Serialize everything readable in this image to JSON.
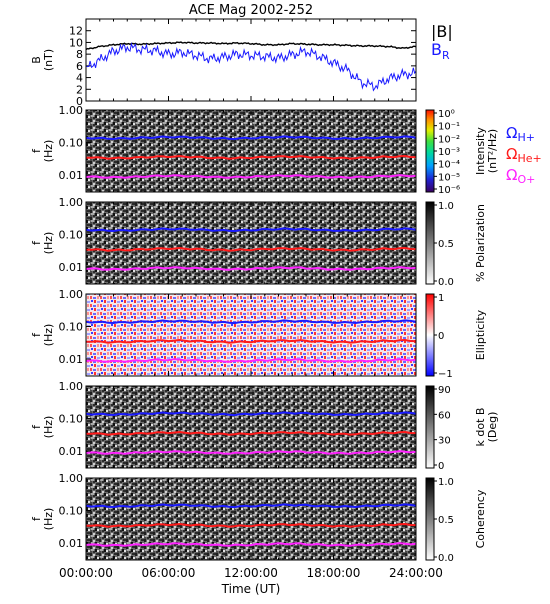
{
  "chart_data": {
    "title": "ACE Mag 2002-252",
    "xlabel": "Time (UT)",
    "x_ticks": [
      "00:00:00",
      "06:00:00",
      "12:00:00",
      "18:00:00",
      "24:00:00"
    ],
    "xlim": [
      0,
      24
    ],
    "panels": [
      {
        "type": "line",
        "ylabel": [
          "B",
          "(nT)"
        ],
        "ylim": [
          0,
          14
        ],
        "y_ticks": [
          "0",
          "2",
          "4",
          "6",
          "8",
          "10",
          "12"
        ],
        "legend": [
          {
            "label": "|B|",
            "color": "#000000"
          },
          {
            "label": "B",
            "sub": "R",
            "color": "#1a1aff"
          }
        ],
        "series": [
          {
            "name": "|B|",
            "color": "#000000",
            "x": [
              0,
              1,
              2,
              3,
              4,
              5,
              6,
              7,
              8,
              9,
              10,
              11,
              12,
              13,
              14,
              15,
              16,
              17,
              18,
              19,
              20,
              21,
              22,
              23,
              24
            ],
            "y": [
              8.8,
              9.3,
              9.6,
              9.8,
              9.7,
              9.8,
              9.9,
              10.0,
              9.9,
              9.9,
              9.8,
              9.9,
              9.8,
              9.6,
              9.6,
              9.8,
              9.7,
              9.6,
              9.6,
              9.5,
              9.4,
              9.4,
              9.3,
              9.0,
              9.3
            ]
          },
          {
            "name": "B_R",
            "color": "#1a1aff",
            "x": [
              0,
              1,
              2,
              3,
              4,
              5,
              6,
              7,
              8,
              9,
              10,
              11,
              12,
              13,
              14,
              15,
              16,
              17,
              18,
              19,
              20,
              21,
              22,
              23,
              24
            ],
            "y": [
              5.5,
              7.0,
              8.5,
              9.2,
              8.8,
              8.6,
              8.0,
              8.3,
              7.8,
              7.2,
              7.5,
              8.0,
              7.8,
              7.6,
              7.3,
              7.9,
              8.5,
              7.6,
              6.5,
              5.3,
              3.2,
              2.5,
              3.8,
              4.5,
              4.8
            ]
          }
        ]
      },
      {
        "type": "heatmap",
        "ylabel": [
          "f",
          "(Hz)"
        ],
        "ylim": [
          0.003,
          1.0
        ],
        "yscale": "log",
        "y_ticks": [
          "1.00",
          "0.10",
          "0.01"
        ],
        "colorbar": {
          "label": [
            "Intensity",
            "(nT²/Hz)"
          ],
          "ticks": [
            "10⁰",
            "10⁻¹",
            "10⁻²",
            "10⁻³",
            "10⁻⁴",
            "10⁻⁵",
            "10⁻⁶"
          ],
          "scale": "rainbow"
        },
        "lines": [
          {
            "label": "Ω",
            "sub": "H+",
            "color": "#1a1aff",
            "value": 0.14
          },
          {
            "label": "Ω",
            "sub": "He+",
            "color": "#ff1a1a",
            "value": 0.035
          },
          {
            "label": "Ω",
            "sub": "O+",
            "color": "#ff22ff",
            "value": 0.009
          }
        ]
      },
      {
        "type": "heatmap",
        "ylabel": [
          "f",
          "(Hz)"
        ],
        "ylim": [
          0.003,
          1.0
        ],
        "yscale": "log",
        "y_ticks": [
          "1.00",
          "0.10",
          "0.01"
        ],
        "colorbar": {
          "label": [
            "% Polarization"
          ],
          "ticks": [
            "1.0",
            "0.5",
            "0.0"
          ],
          "scale": "gray"
        }
      },
      {
        "type": "heatmap",
        "ylabel": [
          "f",
          "(Hz)"
        ],
        "ylim": [
          0.003,
          1.0
        ],
        "yscale": "log",
        "y_ticks": [
          "1.00",
          "0.10",
          "0.01"
        ],
        "colorbar": {
          "label": [
            "Ellipticity"
          ],
          "ticks": [
            "1",
            "0",
            "−1"
          ],
          "scale": "bwr"
        }
      },
      {
        "type": "heatmap",
        "ylabel": [
          "f",
          "(Hz)"
        ],
        "ylim": [
          0.003,
          1.0
        ],
        "yscale": "log",
        "y_ticks": [
          "1.00",
          "0.10",
          "0.01"
        ],
        "colorbar": {
          "label": [
            "k dot B",
            "(Deg)"
          ],
          "ticks": [
            "90",
            "60",
            "30",
            "0"
          ],
          "scale": "gray"
        }
      },
      {
        "type": "heatmap",
        "ylabel": [
          "f",
          "(Hz)"
        ],
        "ylim": [
          0.003,
          1.0
        ],
        "yscale": "log",
        "y_ticks": [
          "1.00",
          "0.10",
          "0.01"
        ],
        "colorbar": {
          "label": [
            "Coherency"
          ],
          "ticks": [
            "1.0",
            "0.5",
            "0.0"
          ],
          "scale": "gray"
        }
      }
    ]
  }
}
